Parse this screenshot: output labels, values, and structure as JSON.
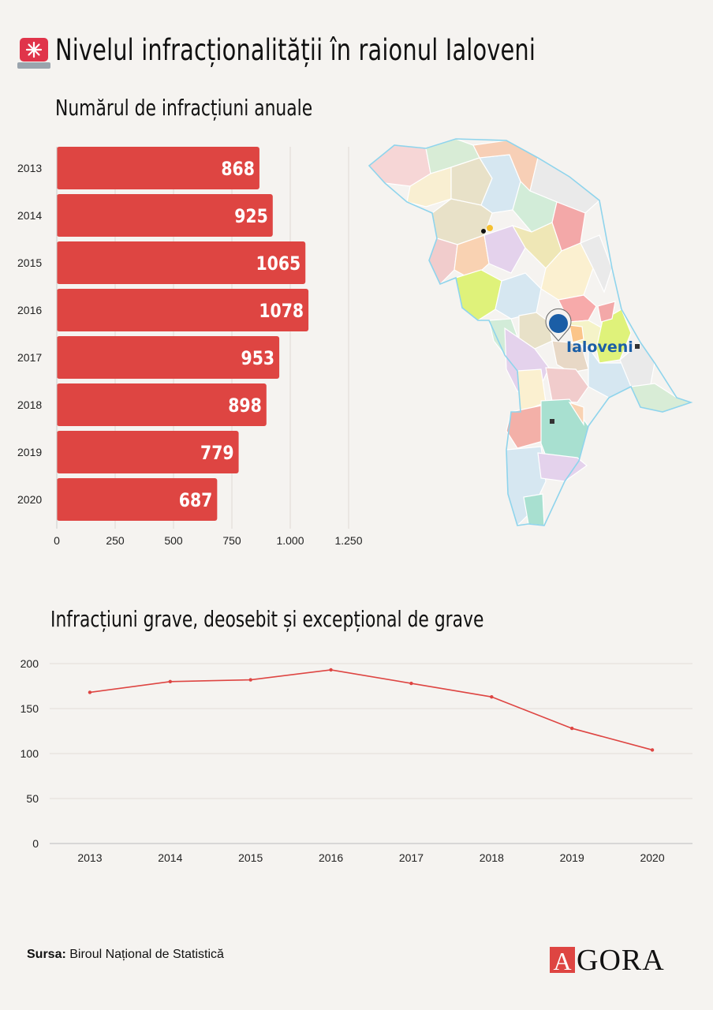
{
  "header": {
    "title": "Nivelul infracționalității în raionul Ialoveni",
    "icon": "siren-icon"
  },
  "bar_section": {
    "subtitle": "Numărul de infracțiuni anuale"
  },
  "line_section": {
    "subtitle": "Infracțiuni grave, deosebit și excepțional de grave"
  },
  "map": {
    "label": "Ialoveni",
    "highlight_color": "#1b5ea6"
  },
  "chart_data": [
    {
      "type": "bar",
      "orientation": "horizontal",
      "title": "Numărul de infracțiuni anuale",
      "categories": [
        "2013",
        "2014",
        "2015",
        "2016",
        "2017",
        "2018",
        "2019",
        "2020"
      ],
      "values": [
        868,
        925,
        1065,
        1078,
        953,
        898,
        779,
        687
      ],
      "value_labels": [
        "868",
        "925",
        "1065",
        "1078",
        "953",
        "898",
        "779",
        "687"
      ],
      "xlim": [
        0,
        1250
      ],
      "xticks": [
        0,
        250,
        500,
        750,
        1000,
        1250
      ],
      "xtick_labels": [
        "0",
        "250",
        "500",
        "750",
        "1.000",
        "1.250"
      ],
      "grid": true,
      "color": "#de4542"
    },
    {
      "type": "line",
      "title": "Infracțiuni grave, deosebit și excepțional de grave",
      "x": [
        "2013",
        "2014",
        "2015",
        "2016",
        "2017",
        "2018",
        "2019",
        "2020"
      ],
      "values": [
        168,
        180,
        182,
        193,
        178,
        163,
        128,
        104
      ],
      "ylim": [
        0,
        200
      ],
      "yticks": [
        0,
        50,
        100,
        150,
        200
      ],
      "grid": true,
      "color": "#de4542"
    }
  ],
  "footer": {
    "source_label": "Sursa:",
    "source_text": "Biroul Național de Statistică",
    "logo_text": "GORA",
    "logo_mark_letter": "A"
  }
}
